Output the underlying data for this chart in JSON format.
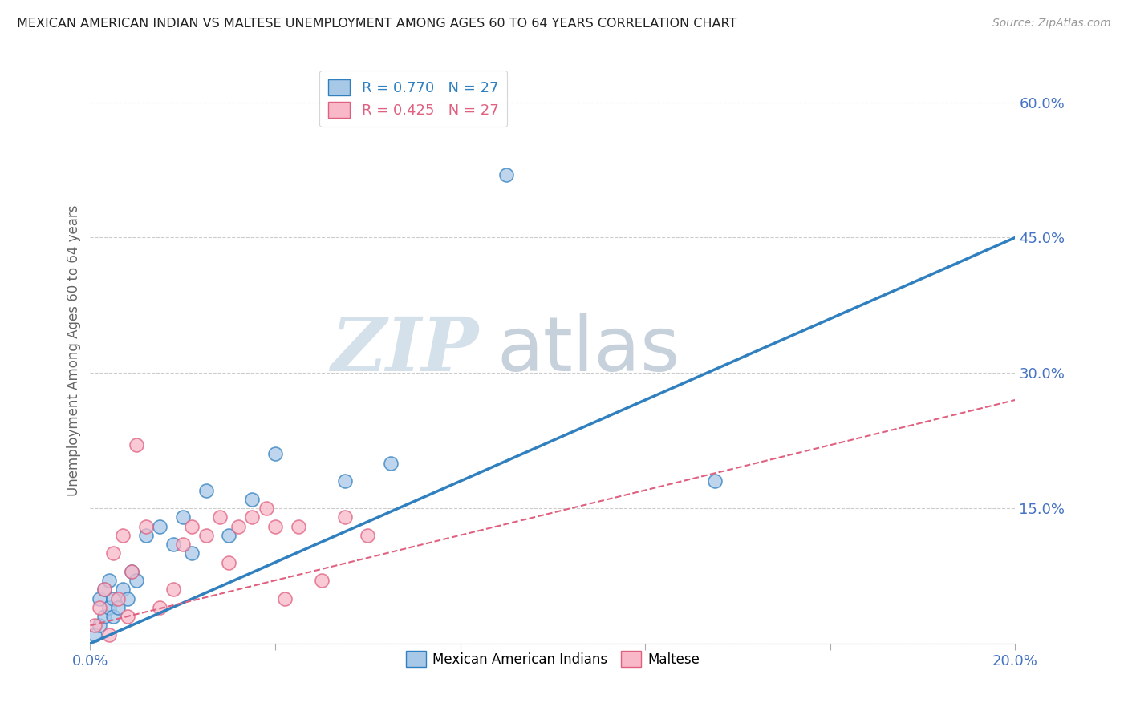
{
  "title": "MEXICAN AMERICAN INDIAN VS MALTESE UNEMPLOYMENT AMONG AGES 60 TO 64 YEARS CORRELATION CHART",
  "source": "Source: ZipAtlas.com",
  "ylabel": "Unemployment Among Ages 60 to 64 years",
  "xmin": 0.0,
  "xmax": 0.2,
  "ymin": 0.0,
  "ymax": 0.65,
  "x_ticks": [
    0.0,
    0.04,
    0.08,
    0.12,
    0.16,
    0.2
  ],
  "x_tick_labels": [
    "0.0%",
    "",
    "",
    "",
    "",
    "20.0%"
  ],
  "y_ticks": [
    0.0,
    0.15,
    0.3,
    0.45,
    0.6
  ],
  "y_tick_labels": [
    "",
    "15.0%",
    "30.0%",
    "45.0%",
    "60.0%"
  ],
  "r_mexican": 0.77,
  "n_mexican": 27,
  "r_maltese": 0.425,
  "n_maltese": 27,
  "color_mexican": "#a8c8e8",
  "color_maltese": "#f8b8c8",
  "color_mexican_line": "#3080c0",
  "color_maltese_line": "#e06080",
  "color_tick": "#4472c4",
  "watermark_zip": "ZIP",
  "watermark_atlas": "atlas",
  "legend_label_mexican": "Mexican American Indians",
  "legend_label_maltese": "Maltese",
  "mexican_x": [
    0.001,
    0.002,
    0.002,
    0.003,
    0.003,
    0.004,
    0.004,
    0.005,
    0.005,
    0.006,
    0.007,
    0.008,
    0.009,
    0.01,
    0.012,
    0.015,
    0.018,
    0.02,
    0.022,
    0.025,
    0.03,
    0.035,
    0.04,
    0.055,
    0.065,
    0.09,
    0.135
  ],
  "mexican_y": [
    0.01,
    0.02,
    0.05,
    0.03,
    0.06,
    0.04,
    0.07,
    0.03,
    0.05,
    0.04,
    0.06,
    0.05,
    0.08,
    0.07,
    0.12,
    0.13,
    0.11,
    0.14,
    0.1,
    0.17,
    0.12,
    0.16,
    0.21,
    0.18,
    0.2,
    0.52,
    0.18
  ],
  "maltese_x": [
    0.001,
    0.002,
    0.003,
    0.004,
    0.005,
    0.006,
    0.007,
    0.008,
    0.009,
    0.01,
    0.012,
    0.015,
    0.018,
    0.02,
    0.022,
    0.025,
    0.028,
    0.03,
    0.032,
    0.035,
    0.038,
    0.04,
    0.042,
    0.045,
    0.05,
    0.055,
    0.06
  ],
  "maltese_y": [
    0.02,
    0.04,
    0.06,
    0.01,
    0.1,
    0.05,
    0.12,
    0.03,
    0.08,
    0.22,
    0.13,
    0.04,
    0.06,
    0.11,
    0.13,
    0.12,
    0.14,
    0.09,
    0.13,
    0.14,
    0.15,
    0.13,
    0.05,
    0.13,
    0.07,
    0.14,
    0.12
  ],
  "mex_line_x": [
    0.0,
    0.2
  ],
  "mex_line_y": [
    0.0,
    0.45
  ],
  "mal_line_x": [
    0.0,
    0.2
  ],
  "mal_line_y": [
    0.02,
    0.27
  ]
}
